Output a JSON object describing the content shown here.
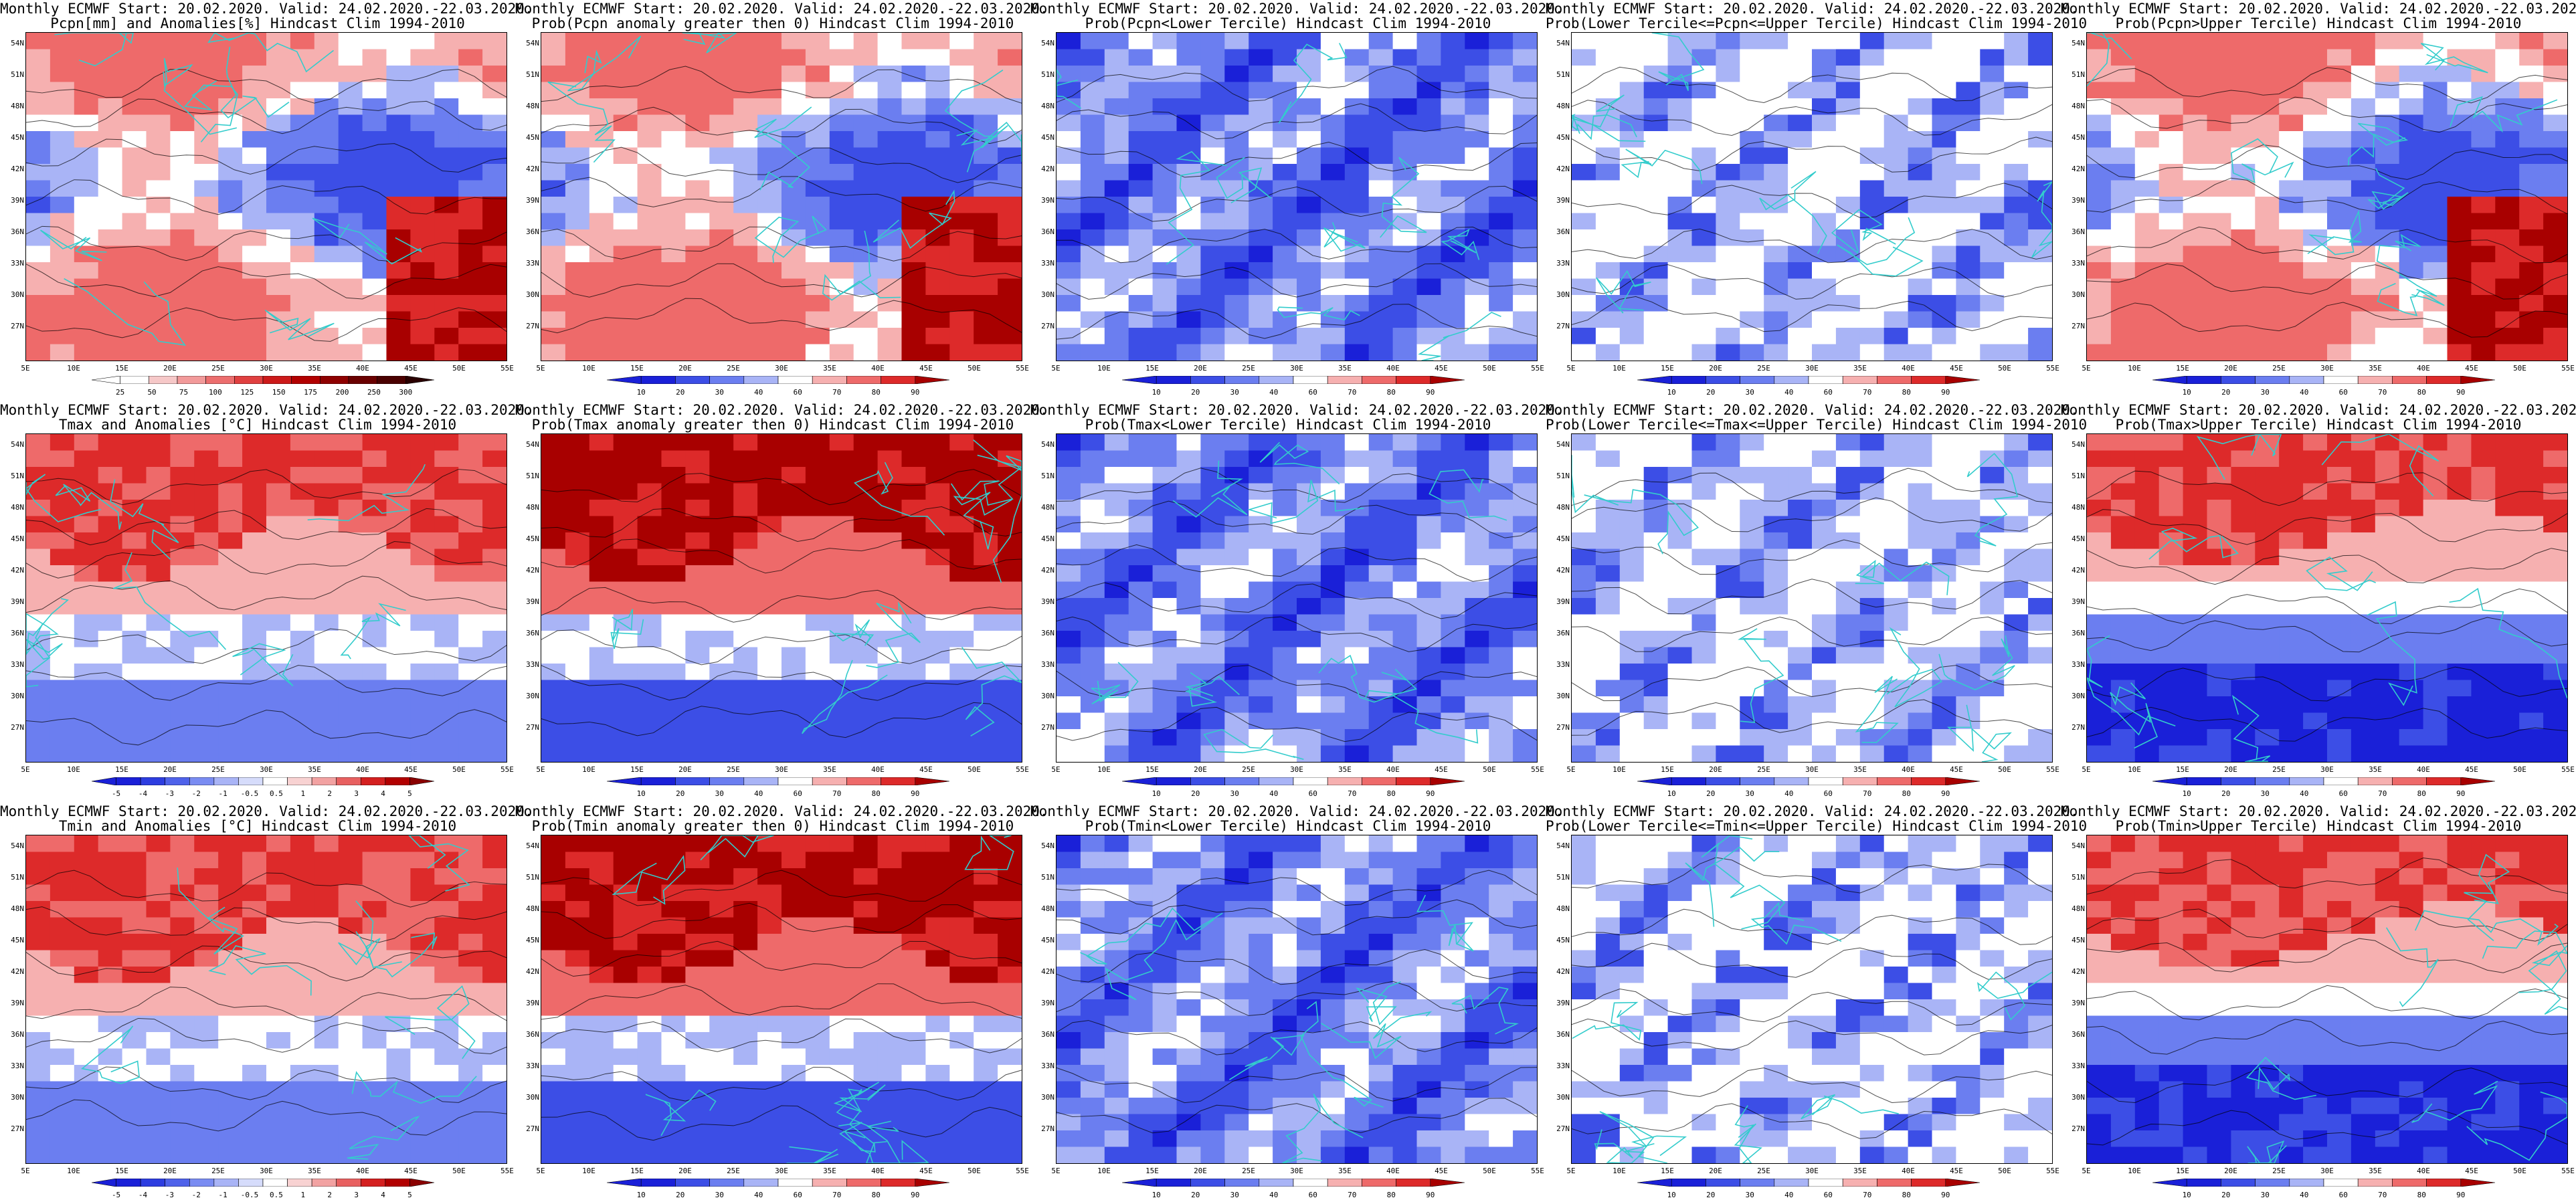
{
  "figure": {
    "line1": "Monthly ECMWF Start: 20.02.2020. Valid: 24.02.2020.-22.03.2020.",
    "lat_labels": [
      "54N",
      "51N",
      "48N",
      "45N",
      "42N",
      "39N",
      "36N",
      "33N",
      "30N",
      "27N"
    ],
    "lon_labels": [
      "5E",
      "10E",
      "15E",
      "20E",
      "25E",
      "30E",
      "35E",
      "40E",
      "45E",
      "50E",
      "55E"
    ],
    "cb_anom_pcpn": [
      "25",
      "50",
      "75",
      "100",
      "125",
      "150",
      "175",
      "200",
      "250",
      "300"
    ],
    "cb_anom_temp": [
      "-5",
      "-4",
      "-3",
      "-2",
      "-1",
      "-0.5",
      "0.5",
      "1",
      "2",
      "3",
      "4",
      "5"
    ],
    "cb_prob": [
      "10",
      "20",
      "30",
      "40",
      "60",
      "70",
      "80",
      "90"
    ]
  },
  "panels": [
    {
      "id": "pcpn-anom",
      "line2": "Pcpn[mm] and Anomalies[%] Hindcast Clim 1994-2010",
      "scale": "pcpn",
      "field": "pcpn_mix"
    },
    {
      "id": "pcpn-prob-gt0",
      "line2": "Prob(Pcpn anomaly greater then 0) Hindcast Clim 1994-2010",
      "scale": "prob",
      "field": "pcpn_mix"
    },
    {
      "id": "pcpn-prob-lower",
      "line2": "Prob(Pcpn<Lower Tercile) Hindcast Clim 1994-2010",
      "scale": "prob",
      "field": "blue_heavy"
    },
    {
      "id": "pcpn-prob-middle",
      "line2": "Prob(Lower Tercile<=Pcpn<=Upper Tercile) Hindcast Clim 1994-2010",
      "scale": "prob",
      "field": "blue_light"
    },
    {
      "id": "pcpn-prob-upper",
      "line2": "Prob(Pcpn>Upper Tercile) Hindcast Clim 1994-2010",
      "scale": "prob",
      "field": "pcpn_mix"
    },
    {
      "id": "tmax-anom",
      "line2": "Tmax and Anomalies [°C] Hindcast Clim 1994-2010",
      "scale": "temp",
      "field": "red_north"
    },
    {
      "id": "tmax-prob-gt0",
      "line2": "Prob(Tmax anomaly greater then 0) Hindcast Clim 1994-2010",
      "scale": "prob",
      "field": "red_north_strong"
    },
    {
      "id": "tmax-prob-lower",
      "line2": "Prob(Tmax<Lower Tercile) Hindcast Clim 1994-2010",
      "scale": "prob",
      "field": "blue_heavy"
    },
    {
      "id": "tmax-prob-middle",
      "line2": "Prob(Lower Tercile<=Tmax<=Upper Tercile) Hindcast Clim 1994-2010",
      "scale": "prob",
      "field": "blue_light"
    },
    {
      "id": "tmax-prob-upper",
      "line2": "Prob(Tmax>Upper Tercile) Hindcast Clim 1994-2010",
      "scale": "prob",
      "field": "red_north_blue_south"
    },
    {
      "id": "tmin-anom",
      "line2": "Tmin and Anomalies [°C] Hindcast Clim 1994-2010",
      "scale": "temp",
      "field": "red_north"
    },
    {
      "id": "tmin-prob-gt0",
      "line2": "Prob(Tmin anomaly greater then 0) Hindcast Clim 1994-2010",
      "scale": "prob",
      "field": "red_north_strong"
    },
    {
      "id": "tmin-prob-lower",
      "line2": "Prob(Tmin<Lower Tercile) Hindcast Clim 1994-2010",
      "scale": "prob",
      "field": "blue_heavy"
    },
    {
      "id": "tmin-prob-middle",
      "line2": "Prob(Lower Tercile<=Tmin<=Upper Tercile) Hindcast Clim 1994-2010",
      "scale": "prob",
      "field": "blue_light"
    },
    {
      "id": "tmin-prob-upper",
      "line2": "Prob(Tmin>Upper Tercile) Hindcast Clim 1994-2010",
      "scale": "prob",
      "field": "red_north_blue_south"
    }
  ],
  "colors": {
    "prob_scale": [
      "#1a20d8",
      "#3c4ee6",
      "#6b7ef0",
      "#a9b4f6",
      "#ffffff",
      "#f6b0b0",
      "#ee6a6a",
      "#dd2a2a",
      "#a80000"
    ],
    "pcpn_scale": [
      "#ffffff",
      "#f6c8c8",
      "#f29a9a",
      "#ec6e6e",
      "#e04040",
      "#cc1a1a",
      "#b20000",
      "#8e0000",
      "#6a0000",
      "#4a0000",
      "#2a0000"
    ],
    "temp_scale": [
      "#1a20d8",
      "#2d3de0",
      "#4f62ea",
      "#7a8cf2",
      "#a9b4f6",
      "#d6dcfb",
      "#ffffff",
      "#f8d2d2",
      "#f2a2a2",
      "#e86060",
      "#d42020",
      "#b20000",
      "#8a0000"
    ],
    "border": "#33cccc",
    "contour": "#000000"
  }
}
